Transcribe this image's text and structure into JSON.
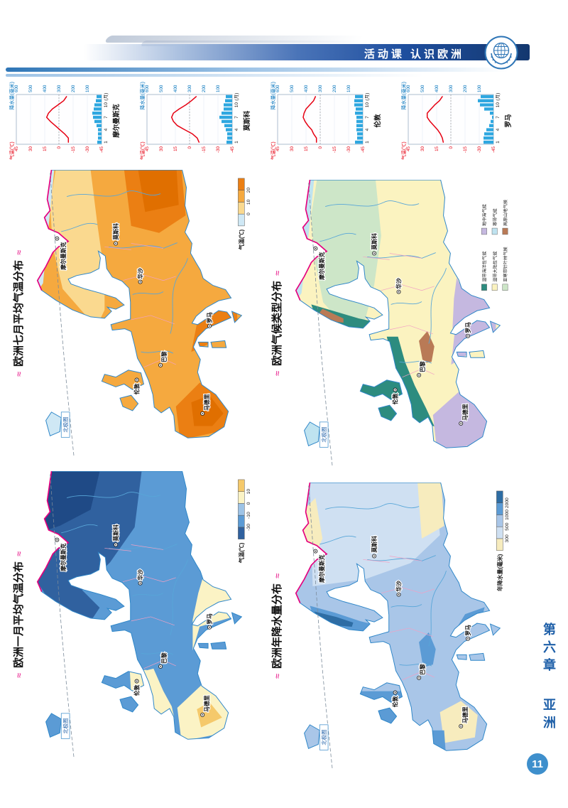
{
  "page": {
    "header_title": "活动课 认识欧洲",
    "chapter": "第六章",
    "section": "亚洲",
    "page_number": "11"
  },
  "colors": {
    "header_navy": "#1E4E9E",
    "accent_magenta": "#E5007E",
    "temp_red": "#E60012",
    "precip_blue": "#2EA7E0",
    "precip_text_blue": "#0072BC",
    "coast_blue": "#2E86C8",
    "page_circle_blue": "#3E8FCC",
    "chapter_blue": "#1E5FA8"
  },
  "climate_charts": {
    "temp_axis_label": "气温(℃)",
    "precip_axis_label": "降水量(毫米)",
    "month_axis_label": "(月)",
    "temp_ticks": [
      45,
      30,
      15,
      0,
      -15,
      -30,
      -45
    ],
    "precip_ticks": [
      600,
      500,
      400,
      300,
      200,
      100
    ],
    "month_ticks": [
      1,
      4,
      7,
      10
    ]
  },
  "chart_data": [
    {
      "type": "line+bar",
      "station": "摩尔曼斯克",
      "x_months": [
        1,
        2,
        3,
        4,
        5,
        6,
        7,
        8,
        9,
        10,
        11,
        12
      ],
      "temperature_c": [
        -10,
        -10,
        -6,
        -1,
        4,
        9,
        13,
        11,
        7,
        1,
        -5,
        -8
      ],
      "precipitation_mm": [
        30,
        25,
        25,
        25,
        35,
        50,
        60,
        65,
        55,
        50,
        40,
        35
      ],
      "temp_axis_range": [
        -45,
        45
      ],
      "precip_axis_range": [
        0,
        600
      ]
    },
    {
      "type": "line+bar",
      "station": "莫斯科",
      "x_months": [
        1,
        2,
        3,
        4,
        5,
        6,
        7,
        8,
        9,
        10,
        11,
        12
      ],
      "temperature_c": [
        -10,
        -8,
        -3,
        5,
        13,
        17,
        19,
        17,
        11,
        4,
        -2,
        -7
      ],
      "precipitation_mm": [
        40,
        35,
        35,
        45,
        55,
        75,
        90,
        75,
        60,
        60,
        50,
        45
      ],
      "temp_axis_range": [
        -45,
        45
      ],
      "precip_axis_range": [
        0,
        600
      ]
    },
    {
      "type": "line+bar",
      "station": "伦敦",
      "x_months": [
        1,
        2,
        3,
        4,
        5,
        6,
        7,
        8,
        9,
        10,
        11,
        12
      ],
      "temperature_c": [
        4,
        4,
        7,
        9,
        13,
        16,
        18,
        17,
        15,
        11,
        7,
        5
      ],
      "precipitation_mm": [
        55,
        40,
        40,
        45,
        45,
        45,
        45,
        55,
        50,
        60,
        60,
        55
      ],
      "temp_axis_range": [
        -45,
        45
      ],
      "precip_axis_range": [
        0,
        600
      ]
    },
    {
      "type": "line+bar",
      "station": "罗马",
      "x_months": [
        1,
        2,
        3,
        4,
        5,
        6,
        7,
        8,
        9,
        10,
        11,
        12
      ],
      "temperature_c": [
        8,
        9,
        11,
        14,
        18,
        22,
        25,
        25,
        21,
        17,
        12,
        9
      ],
      "precipitation_mm": [
        70,
        70,
        65,
        50,
        30,
        20,
        10,
        25,
        65,
        95,
        110,
        90
      ],
      "temp_axis_range": [
        -45,
        45
      ],
      "precip_axis_range": [
        0,
        600
      ]
    }
  ],
  "maps": [
    {
      "id": "january",
      "title": "欧洲一月平均气温分布",
      "legend_label": "气温(℃)",
      "legend_ticks": [
        -30,
        -10,
        0,
        10
      ],
      "legend_colors": [
        "#30619F",
        "#5B9BD5",
        "#9DC3E6",
        "#FBF3C5",
        "#F5C96B"
      ]
    },
    {
      "id": "july",
      "title": "欧洲七月平均气温分布",
      "legend_label": "气温(℃)",
      "legend_ticks": [
        0,
        10,
        20
      ],
      "legend_colors": [
        "#CFE8F5",
        "#FAD98F",
        "#F5A93F",
        "#EB7F13"
      ]
    },
    {
      "id": "precip",
      "title": "欧洲年降水量分布",
      "legend_label": "年降水量(毫米)",
      "legend_ticks": [
        300,
        500,
        1000,
        2000
      ],
      "legend_colors": [
        "#F7ECBE",
        "#CFE0F2",
        "#A9C6E8",
        "#5B9BD5",
        "#2E6DA4"
      ]
    },
    {
      "id": "climate",
      "title": "欧洲气候类型分布",
      "legend_items": [
        {
          "label": "温带海洋性气候",
          "color": "#2D8C7F"
        },
        {
          "label": "温带大陆性气候",
          "color": "#FBF3C0"
        },
        {
          "label": "亚寒带针叶林气候",
          "color": "#CDE6C8"
        },
        {
          "label": "地中海气候",
          "color": "#C5B8E0"
        },
        {
          "label": "寒带气候",
          "color": "#BFE3F0"
        },
        {
          "label": "高原山地气候",
          "color": "#B97A56"
        }
      ]
    }
  ],
  "map_cities": [
    "摩尔曼斯克",
    "莫斯科",
    "华沙",
    "伦敦",
    "巴黎",
    "罗马",
    "马德里"
  ],
  "arctic_circle_label": "北极圈"
}
